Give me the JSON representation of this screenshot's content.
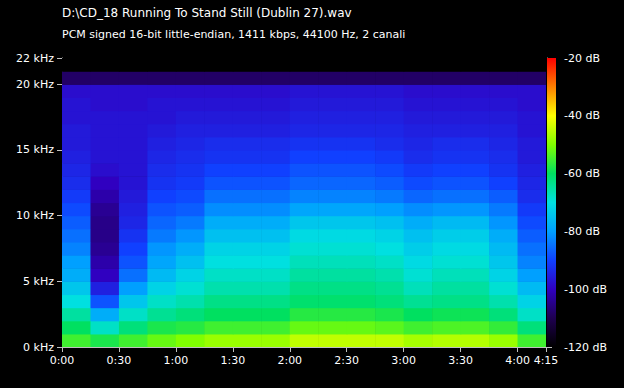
{
  "chart_data": {
    "type": "heatmap",
    "title": "D:\\CD_18 Running To Stand Still (Dublin 27).wav",
    "subtitle": "PCM signed 16-bit little-endian, 1411 kbps, 44100 Hz, 2 canali",
    "xlim": [
      0,
      255
    ],
    "xticks": [
      {
        "value": 0,
        "label": "0:00"
      },
      {
        "value": 30,
        "label": "0:30"
      },
      {
        "value": 60,
        "label": "1:00"
      },
      {
        "value": 90,
        "label": "1:30"
      },
      {
        "value": 120,
        "label": "2:00"
      },
      {
        "value": 150,
        "label": "2:30"
      },
      {
        "value": 180,
        "label": "3:00"
      },
      {
        "value": 210,
        "label": "3:30"
      },
      {
        "value": 240,
        "label": "4:00"
      },
      {
        "value": 255,
        "label": "4:15"
      }
    ],
    "ylim": [
      0,
      22
    ],
    "yticks": [
      {
        "value": 0,
        "label": "0 kHz"
      },
      {
        "value": 5,
        "label": "5 kHz"
      },
      {
        "value": 10,
        "label": "10 kHz"
      },
      {
        "value": 15,
        "label": "15 kHz"
      },
      {
        "value": 20,
        "label": "20 kHz"
      },
      {
        "value": 22,
        "label": "22 kHz"
      }
    ],
    "grid": false,
    "time_bins": [
      0,
      15,
      30,
      45,
      60,
      75,
      90,
      105,
      120,
      135,
      150,
      165,
      180,
      195,
      210,
      225,
      240,
      255
    ],
    "freq_bins": [
      0,
      1,
      2,
      3,
      4,
      5,
      6,
      7,
      8,
      9,
      10,
      11,
      12,
      13,
      14,
      15,
      16,
      17,
      18,
      19,
      20,
      21,
      22
    ],
    "cells": [
      [
        -55,
        -58,
        -55,
        -52,
        -50,
        -48,
        -48,
        -48,
        -45,
        -45,
        -45,
        -45,
        -47,
        -46,
        -46,
        -48,
        -55
      ],
      [
        -60,
        -68,
        -62,
        -58,
        -57,
        -55,
        -55,
        -55,
        -52,
        -52,
        -52,
        -53,
        -55,
        -54,
        -54,
        -56,
        -62
      ],
      [
        -65,
        -78,
        -68,
        -64,
        -62,
        -60,
        -60,
        -60,
        -57,
        -57,
        -57,
        -58,
        -60,
        -59,
        -59,
        -62,
        -68
      ],
      [
        -70,
        -88,
        -74,
        -68,
        -66,
        -63,
        -63,
        -63,
        -61,
        -61,
        -61,
        -62,
        -64,
        -63,
        -63,
        -66,
        -72
      ],
      [
        -74,
        -95,
        -80,
        -72,
        -69,
        -66,
        -66,
        -66,
        -63,
        -63,
        -63,
        -64,
        -67,
        -65,
        -65,
        -69,
        -76
      ],
      [
        -78,
        -100,
        -85,
        -76,
        -72,
        -68,
        -68,
        -68,
        -65,
        -65,
        -65,
        -66,
        -69,
        -67,
        -67,
        -72,
        -80
      ],
      [
        -80,
        -102,
        -88,
        -79,
        -75,
        -70,
        -70,
        -70,
        -67,
        -67,
        -67,
        -68,
        -71,
        -69,
        -69,
        -74,
        -83
      ],
      [
        -83,
        -104,
        -90,
        -81,
        -78,
        -72,
        -72,
        -72,
        -69,
        -69,
        -69,
        -70,
        -73,
        -71,
        -71,
        -76,
        -85
      ],
      [
        -85,
        -105,
        -92,
        -84,
        -81,
        -75,
        -75,
        -75,
        -71,
        -71,
        -71,
        -72,
        -75,
        -73,
        -73,
        -78,
        -87
      ],
      [
        -87,
        -105,
        -94,
        -86,
        -84,
        -78,
        -78,
        -78,
        -74,
        -74,
        -74,
        -75,
        -78,
        -76,
        -76,
        -81,
        -89
      ],
      [
        -89,
        -104,
        -95,
        -88,
        -87,
        -82,
        -82,
        -82,
        -79,
        -79,
        -79,
        -80,
        -82,
        -81,
        -81,
        -84,
        -91
      ],
      [
        -91,
        -102,
        -96,
        -90,
        -89,
        -85,
        -85,
        -85,
        -83,
        -83,
        -83,
        -84,
        -86,
        -85,
        -85,
        -87,
        -93
      ],
      [
        -93,
        -100,
        -97,
        -92,
        -91,
        -88,
        -88,
        -88,
        -86,
        -86,
        -86,
        -87,
        -89,
        -88,
        -88,
        -90,
        -94
      ],
      [
        -94,
        -98,
        -97,
        -93,
        -92,
        -90,
        -90,
        -90,
        -88,
        -88,
        -88,
        -89,
        -91,
        -90,
        -90,
        -92,
        -95
      ],
      [
        -95,
        -97,
        -97,
        -94,
        -93,
        -92,
        -92,
        -92,
        -90,
        -90,
        -90,
        -91,
        -93,
        -92,
        -92,
        -93,
        -96
      ],
      [
        -96,
        -97,
        -97,
        -95,
        -94,
        -93,
        -93,
        -93,
        -92,
        -92,
        -92,
        -93,
        -94,
        -93,
        -93,
        -94,
        -96
      ],
      [
        -96,
        -97,
        -97,
        -96,
        -95,
        -95,
        -95,
        -95,
        -94,
        -94,
        -94,
        -94,
        -95,
        -95,
        -95,
        -95,
        -97
      ],
      [
        -97,
        -97,
        -97,
        -97,
        -96,
        -96,
        -96,
        -96,
        -95,
        -95,
        -95,
        -95,
        -96,
        -96,
        -96,
        -96,
        -97
      ],
      [
        -97,
        -98,
        -98,
        -97,
        -97,
        -97,
        -97,
        -97,
        -96,
        -96,
        -96,
        -96,
        -97,
        -97,
        -97,
        -97,
        -98
      ],
      [
        -98,
        -98,
        -98,
        -98,
        -98,
        -98,
        -98,
        -98,
        -97,
        -97,
        -97,
        -97,
        -98,
        -98,
        -98,
        -98,
        -98
      ],
      [
        -108,
        -108,
        -108,
        -108,
        -108,
        -108,
        -108,
        -108,
        -108,
        -108,
        -108,
        -108,
        -108,
        -108,
        -108,
        -108,
        -108
      ],
      [
        -120,
        -120,
        -120,
        -120,
        -120,
        -120,
        -120,
        -120,
        -120,
        -120,
        -120,
        -120,
        -120,
        -120,
        -120,
        -120,
        -120
      ]
    ],
    "colorbar_range": [
      -120,
      -20
    ],
    "colorbar_ticks": [
      {
        "value": -20,
        "label": "-20 dB"
      },
      {
        "value": -40,
        "label": "-40 dB"
      },
      {
        "value": -60,
        "label": "-60 dB"
      },
      {
        "value": -80,
        "label": "-80 dB"
      },
      {
        "value": -100,
        "label": "-100 dB"
      },
      {
        "value": -120,
        "label": "-120 dB"
      }
    ]
  }
}
